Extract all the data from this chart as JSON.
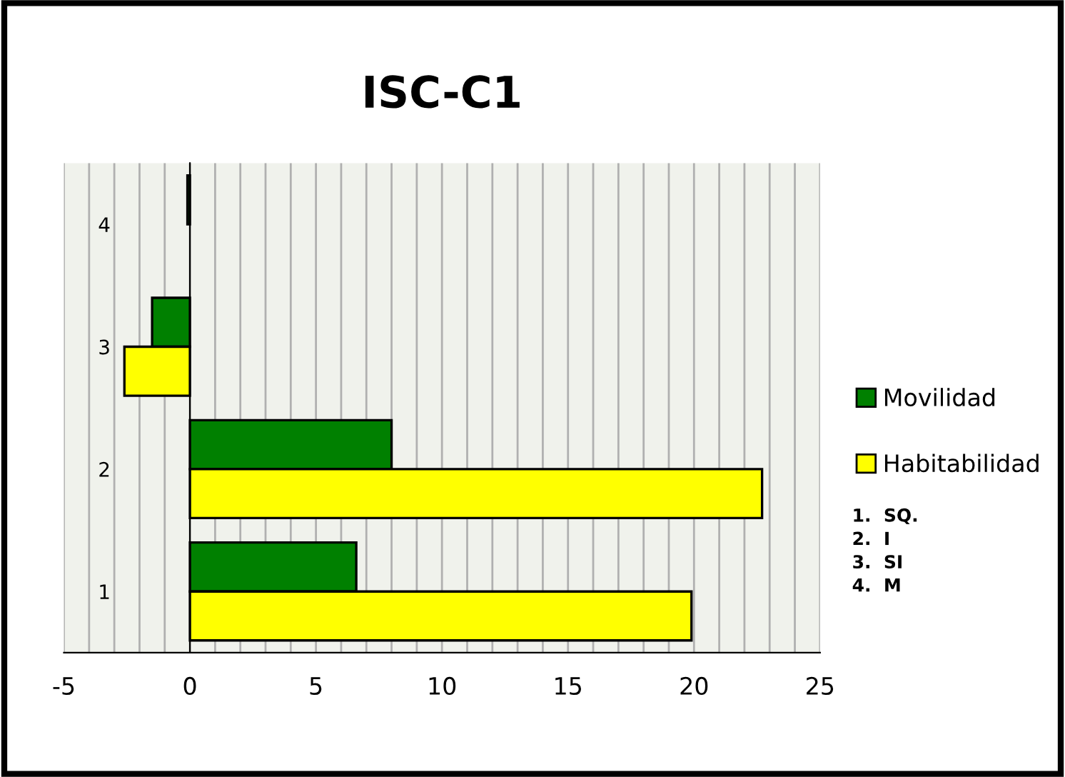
{
  "chart_data": {
    "type": "bar",
    "orientation": "horizontal",
    "title": "ISC-C1",
    "categories": [
      "4",
      "3",
      "2",
      "1"
    ],
    "series": [
      {
        "name": "Movilidad",
        "color": "#008000",
        "values": [
          -0.1,
          -1.5,
          8.0,
          6.6
        ]
      },
      {
        "name": "Habitabilidad",
        "color": "#ffff00",
        "values": [
          null,
          -2.6,
          22.7,
          19.9
        ]
      }
    ],
    "xlim": [
      -5,
      25
    ],
    "xticks": [
      -5,
      {
        "value": -4,
        "label": null
      },
      {
        "value": -3,
        "label": null
      },
      {
        "value": -2,
        "label": null
      },
      {
        "value": -1,
        "label": null
      },
      0,
      {
        "value": 1,
        "label": null
      },
      {
        "value": 2,
        "label": null
      },
      {
        "value": 3,
        "label": null
      },
      {
        "value": 4,
        "label": null
      },
      5,
      {
        "value": 6,
        "label": null
      },
      {
        "value": 7,
        "label": null
      },
      {
        "value": 8,
        "label": null
      },
      {
        "value": 9,
        "label": null
      },
      10,
      {
        "value": 11,
        "label": null
      },
      {
        "value": 12,
        "label": null
      },
      {
        "value": 13,
        "label": null
      },
      {
        "value": 14,
        "label": null
      },
      15,
      {
        "value": 16,
        "label": null
      },
      {
        "value": 17,
        "label": null
      },
      {
        "value": 18,
        "label": null
      },
      {
        "value": 19,
        "label": null
      },
      20,
      {
        "value": 21,
        "label": null
      },
      {
        "value": 22,
        "label": null
      },
      {
        "value": 23,
        "label": null
      },
      {
        "value": 24,
        "label": null
      },
      25
    ],
    "grid": "x",
    "legend": "right",
    "annotations": [
      "1.  SQ.",
      "2.  I",
      "3.  SI",
      "4.  M"
    ]
  }
}
